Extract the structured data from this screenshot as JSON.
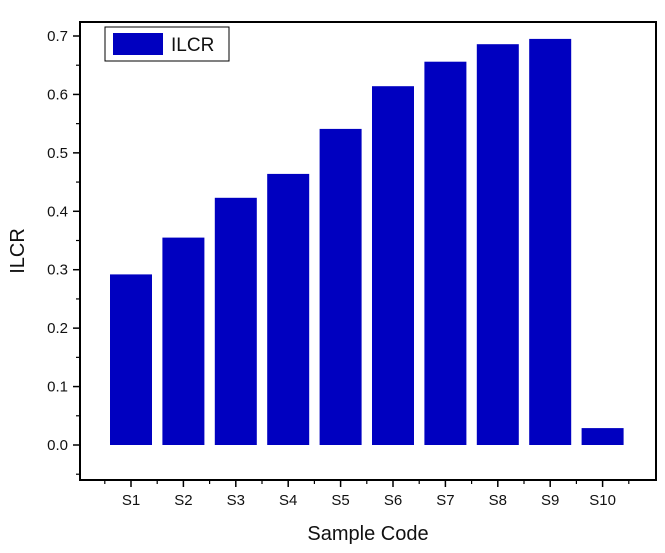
{
  "chart_data": {
    "type": "bar",
    "categories": [
      "S1",
      "S2",
      "S3",
      "S4",
      "S5",
      "S6",
      "S7",
      "S8",
      "S9",
      "S10"
    ],
    "series": [
      {
        "name": "ILCR",
        "values": [
          0.292,
          0.355,
          0.423,
          0.464,
          0.541,
          0.614,
          0.656,
          0.686,
          0.695,
          0.029
        ]
      }
    ],
    "title": "",
    "xlabel": "Sample Code",
    "ylabel": "ILCR",
    "ylim": [
      -0.05,
      0.72
    ],
    "yticks": [
      0.0,
      0.1,
      0.2,
      0.3,
      0.4,
      0.5,
      0.6,
      0.7
    ],
    "ytick_labels": [
      "0.0",
      "0.1",
      "0.2",
      "0.3",
      "0.4",
      "0.5",
      "0.6",
      "0.7"
    ],
    "legend": {
      "position": "top-left",
      "label": "ILCR"
    },
    "grid": false,
    "bar_color": "#0000c0",
    "axis_color": "#000000"
  }
}
